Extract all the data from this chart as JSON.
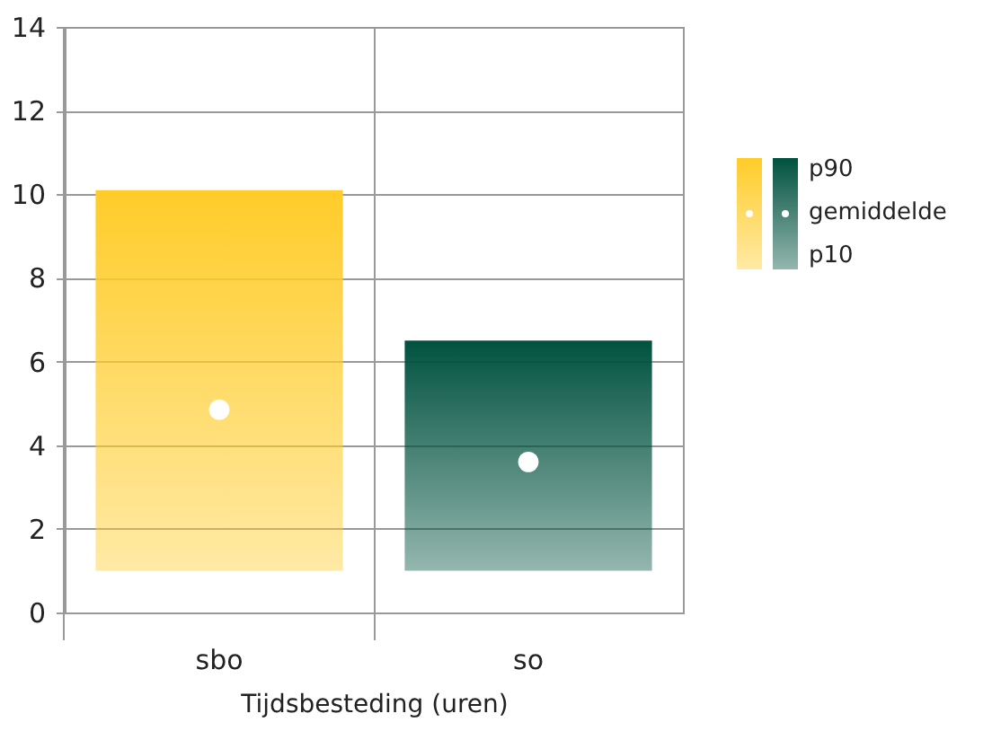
{
  "chart_data": {
    "type": "bar",
    "xlabel": "Tijdsbesteding (uren)",
    "categories": [
      "sbo",
      "so"
    ],
    "series": [
      {
        "type": "bar",
        "base": [
          1.0,
          1.0
        ],
        "values": [
          9.1,
          5.5
        ],
        "colors": [
          "#ffcc29",
          "#00523f"
        ]
      },
      {
        "type": "scatter",
        "name": "gemiddelde",
        "x": [
          "sbo",
          "so"
        ],
        "values": [
          4.85,
          3.6
        ],
        "color": "#ffffff"
      }
    ],
    "annotations": [
      "p90",
      "p10"
    ],
    "ylim": [
      0,
      14
    ],
    "yticks": [
      0,
      2,
      4,
      6,
      8,
      10,
      12,
      14
    ],
    "grid": true,
    "legend": "right"
  }
}
